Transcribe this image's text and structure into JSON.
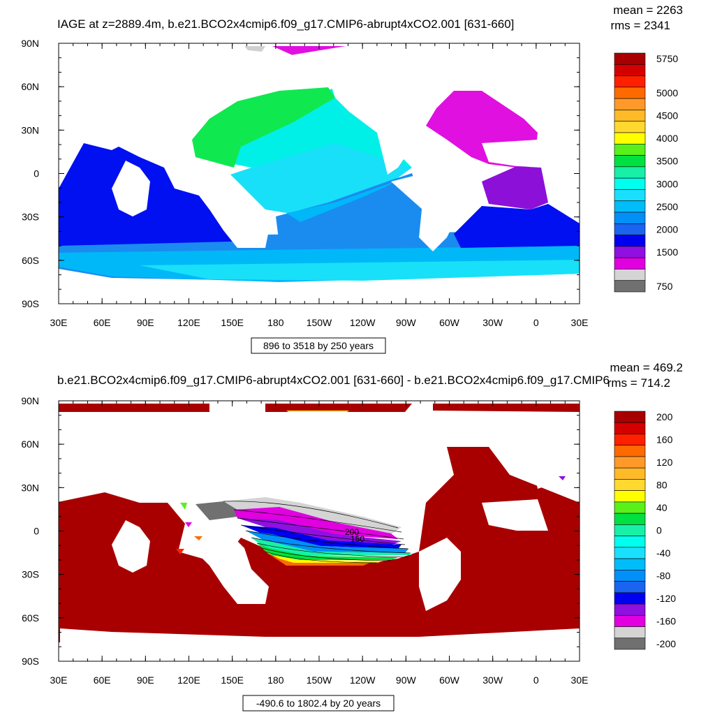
{
  "panels": [
    {
      "title": "IAGE at z=2889.4m, b.e21.BCO2x4cmip6.f09_g17.CMIP6-abrupt4xCO2.001 [631-660]",
      "stats": {
        "mean": "mean = 2263",
        "rms": "rms = 2341"
      },
      "footer": "896 to 3518 by 250 years",
      "y_ticks": [
        "90N",
        "60N",
        "30N",
        "0",
        "30S",
        "60S",
        "90S"
      ],
      "x_ticks": [
        "30E",
        "60E",
        "90E",
        "120E",
        "150E",
        "180",
        "150W",
        "120W",
        "90W",
        "60W",
        "30W",
        "0",
        "30E"
      ],
      "colorbar": {
        "labels": [
          "5750",
          "5000",
          "4500",
          "4000",
          "3500",
          "3000",
          "2500",
          "2000",
          "1500",
          "750"
        ],
        "colors": [
          "#a80000",
          "#d40000",
          "#ff2000",
          "#ff6a00",
          "#ff9a2a",
          "#ffba28",
          "#ffd930",
          "#ffff00",
          "#5af01a",
          "#00e040",
          "#18f0a8",
          "#00ffee",
          "#1ae0ff",
          "#00bcf8",
          "#0090f8",
          "#1a64ef",
          "#0000f0",
          "#9010e0",
          "#e000e0",
          "#d4d4d4",
          "#707070"
        ]
      },
      "legend_colors": {
        "magenta": "#e010e0",
        "purple": "#8c10d8",
        "blue": "#0010f0",
        "mid_blue": "#1a8cf0",
        "sky_blue": "#00b8f8",
        "light_cyan": "#18e0f8",
        "cyan": "#00f0e8",
        "teal": "#18f0b0",
        "green": "#10e850",
        "light_gray": "#d0d0d0",
        "dark_gray": "#707070"
      }
    },
    {
      "title": "b.e21.BCO2x4cmip6.f09_g17.CMIP6-abrupt4xCO2.001 [631-660] - b.e21.BCO2x4cmip6.f09_g17.CMIP6",
      "stats": {
        "mean": "mean = 469.2",
        "rms": "rms = 714.2"
      },
      "footer": "-490.6 to 1802.4 by 20 years",
      "y_ticks": [
        "90N",
        "60N",
        "30N",
        "0",
        "30S",
        "60S",
        "90S"
      ],
      "x_ticks": [
        "30E",
        "60E",
        "90E",
        "120E",
        "150E",
        "180",
        "150W",
        "120W",
        "90W",
        "60W",
        "30W",
        "0",
        "30E"
      ],
      "contour_labels": [
        "200",
        "150"
      ],
      "colorbar": {
        "labels": [
          "200",
          "160",
          "120",
          "80",
          "40",
          "0",
          "-40",
          "-80",
          "-120",
          "-160",
          "-200"
        ],
        "colors": [
          "#a80000",
          "#d40000",
          "#ff2000",
          "#ff6a00",
          "#ff9a2a",
          "#ffba28",
          "#ffd930",
          "#ffff00",
          "#5af01a",
          "#00e040",
          "#18f0a8",
          "#00ffee",
          "#1ae0ff",
          "#00bcf8",
          "#0090f8",
          "#1a64ef",
          "#0000f0",
          "#9010e0",
          "#e000e0",
          "#d4d4d4",
          "#707070"
        ]
      }
    }
  ]
}
